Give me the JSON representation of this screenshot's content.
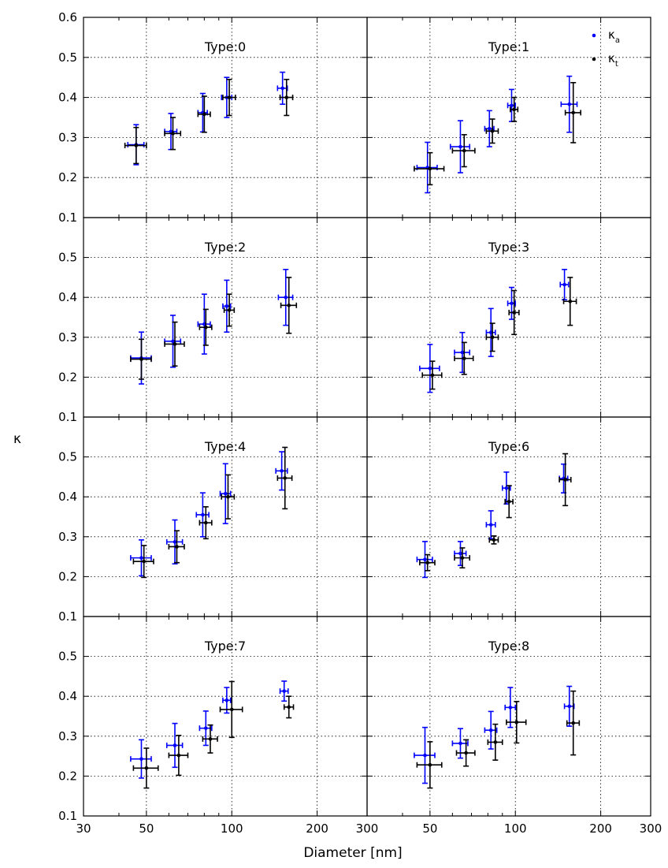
{
  "chart_data": {
    "type": "scatter",
    "layout": "4x2 panels with shared axes, error bars on x and y",
    "xscale": "log",
    "xlim": [
      30,
      300
    ],
    "ylim": [
      0.1,
      0.6
    ],
    "x_ticks": [
      "30",
      "50",
      "100",
      "200",
      "300"
    ],
    "y_ticks": [
      "0.1",
      "0.2",
      "0.3",
      "0.4",
      "0.5",
      "0.6"
    ],
    "xlabel": "Diameter [nm]",
    "ylabel": "κ",
    "grid": true,
    "legend": {
      "placement": "top-right of first right panel",
      "entries": [
        {
          "symbol": "κ",
          "sub": "a",
          "color": "#0000ff"
        },
        {
          "symbol": "κ",
          "sub": "t",
          "color": "#000000"
        }
      ]
    },
    "series_colors": {
      "kappa_a": "#0000ff",
      "kappa_t": "#000000"
    },
    "panels": [
      {
        "title": "Type:0",
        "kappa_a": [
          [
            46,
            0.282,
            3,
            0.05
          ],
          [
            61,
            0.315,
            3,
            0.045
          ],
          [
            79,
            0.362,
            3,
            0.048
          ],
          [
            96,
            0.4,
            4,
            0.05
          ],
          [
            151,
            0.423,
            6,
            0.04
          ]
        ],
        "kappa_t": [
          [
            46,
            0.28,
            4,
            0.045
          ],
          [
            62,
            0.31,
            4,
            0.04
          ],
          [
            80,
            0.358,
            4,
            0.045
          ],
          [
            98,
            0.4,
            5,
            0.045
          ],
          [
            156,
            0.4,
            8,
            0.045
          ]
        ]
      },
      {
        "title": "Type:1",
        "kappa_a": [
          [
            49,
            0.225,
            4,
            0.063
          ],
          [
            64,
            0.277,
            5,
            0.065
          ],
          [
            81,
            0.322,
            3,
            0.045
          ],
          [
            97,
            0.38,
            3,
            0.04
          ],
          [
            155,
            0.383,
            10,
            0.07
          ]
        ],
        "kappa_t": [
          [
            50,
            0.222,
            6,
            0.04
          ],
          [
            66,
            0.267,
            6,
            0.04
          ],
          [
            83,
            0.316,
            4,
            0.03
          ],
          [
            99,
            0.37,
            3,
            0.03
          ],
          [
            160,
            0.362,
            10,
            0.075
          ]
        ]
      },
      {
        "title": "Type:2",
        "kappa_a": [
          [
            48,
            0.248,
            4,
            0.065
          ],
          [
            62,
            0.29,
            4,
            0.065
          ],
          [
            80,
            0.333,
            4,
            0.075
          ],
          [
            96,
            0.378,
            3,
            0.065
          ],
          [
            155,
            0.4,
            9,
            0.07
          ]
        ],
        "kappa_t": [
          [
            48,
            0.245,
            4,
            0.05
          ],
          [
            63,
            0.283,
            5,
            0.055
          ],
          [
            81,
            0.325,
            4,
            0.045
          ],
          [
            98,
            0.368,
            4,
            0.04
          ],
          [
            159,
            0.38,
            10,
            0.07
          ]
        ]
      },
      {
        "title": "Type:3",
        "kappa_a": [
          [
            50,
            0.222,
            4,
            0.06
          ],
          [
            65,
            0.262,
            4,
            0.05
          ],
          [
            82,
            0.312,
            3,
            0.06
          ],
          [
            97,
            0.385,
            3,
            0.04
          ],
          [
            149,
            0.432,
            5,
            0.038
          ]
        ],
        "kappa_t": [
          [
            51,
            0.205,
            4,
            0.035
          ],
          [
            66,
            0.247,
            5,
            0.04
          ],
          [
            83,
            0.3,
            4,
            0.035
          ],
          [
            99,
            0.362,
            4,
            0.055
          ],
          [
            156,
            0.39,
            8,
            0.06
          ]
        ]
      },
      {
        "title": "Type:4",
        "kappa_a": [
          [
            48,
            0.247,
            4,
            0.045
          ],
          [
            63,
            0.287,
            4,
            0.055
          ],
          [
            79,
            0.355,
            4,
            0.055
          ],
          [
            95,
            0.408,
            4,
            0.075
          ],
          [
            150,
            0.465,
            7,
            0.048
          ]
        ],
        "kappa_t": [
          [
            49,
            0.238,
            4,
            0.04
          ],
          [
            64,
            0.275,
            4,
            0.04
          ],
          [
            81,
            0.335,
            4,
            0.04
          ],
          [
            97,
            0.4,
            5,
            0.055
          ],
          [
            154,
            0.447,
            9,
            0.077
          ]
        ]
      },
      {
        "title": "Type:6",
        "kappa_a": [
          [
            48,
            0.243,
            3,
            0.045
          ],
          [
            64,
            0.258,
            3,
            0.03
          ],
          [
            82,
            0.33,
            3,
            0.035
          ],
          [
            93,
            0.422,
            3,
            0.04
          ],
          [
            148,
            0.446,
            5,
            0.036
          ]
        ],
        "kappa_t": [
          [
            49,
            0.235,
            3,
            0.02
          ],
          [
            65,
            0.247,
            4,
            0.025
          ],
          [
            84,
            0.292,
            3,
            0.01
          ],
          [
            95,
            0.388,
            3,
            0.04
          ],
          [
            150,
            0.443,
            7,
            0.065
          ]
        ]
      },
      {
        "title": "Type:7",
        "kappa_a": [
          [
            48,
            0.243,
            4,
            0.048
          ],
          [
            63,
            0.277,
            4,
            0.055
          ],
          [
            81,
            0.32,
            4,
            0.043
          ],
          [
            96,
            0.39,
            3,
            0.032
          ],
          [
            153,
            0.413,
            5,
            0.025
          ]
        ],
        "kappa_t": [
          [
            50,
            0.22,
            5,
            0.05
          ],
          [
            65,
            0.252,
            5,
            0.05
          ],
          [
            84,
            0.293,
            5,
            0.035
          ],
          [
            100,
            0.367,
            9,
            0.07
          ],
          [
            159,
            0.373,
            6,
            0.027
          ]
        ]
      },
      {
        "title": "Type:8",
        "kappa_a": [
          [
            48,
            0.252,
            4,
            0.07
          ],
          [
            64,
            0.282,
            4,
            0.037
          ],
          [
            82,
            0.315,
            4,
            0.047
          ],
          [
            96,
            0.372,
            4,
            0.05
          ],
          [
            155,
            0.375,
            6,
            0.05
          ]
        ],
        "kappa_t": [
          [
            50,
            0.228,
            5,
            0.058
          ],
          [
            67,
            0.258,
            5,
            0.033
          ],
          [
            85,
            0.285,
            5,
            0.045
          ],
          [
            101,
            0.335,
            8,
            0.052
          ],
          [
            160,
            0.333,
            8,
            0.08
          ]
        ]
      }
    ]
  }
}
